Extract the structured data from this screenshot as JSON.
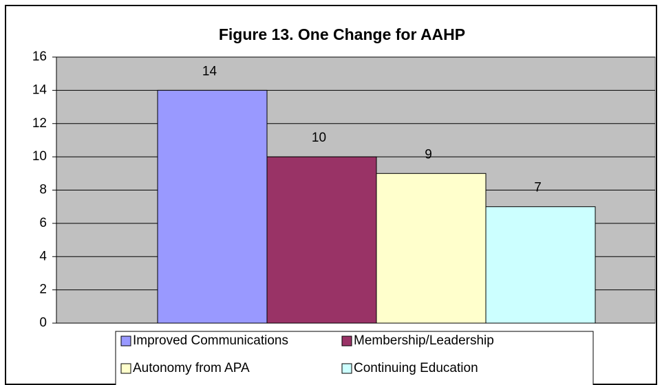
{
  "chart_data": {
    "type": "bar",
    "title": "Figure 13.  One Change for AAHP",
    "categories": [
      null
    ],
    "series": [
      {
        "name": "Improved Communications",
        "color": "#9999ff",
        "values": [
          14
        ]
      },
      {
        "name": "Membership/Leadership",
        "color": "#993366",
        "values": [
          10
        ]
      },
      {
        "name": "Autonomy from APA",
        "color": "#ffffcc",
        "values": [
          9
        ]
      },
      {
        "name": "Continuing Education",
        "color": "#ccffff",
        "values": [
          7
        ]
      }
    ],
    "ylim": [
      0,
      16
    ],
    "yticks": [
      0,
      2,
      4,
      6,
      8,
      10,
      12,
      14,
      16
    ],
    "grid": true,
    "legend": "bottom",
    "plot_background": "#c0c0c0"
  }
}
